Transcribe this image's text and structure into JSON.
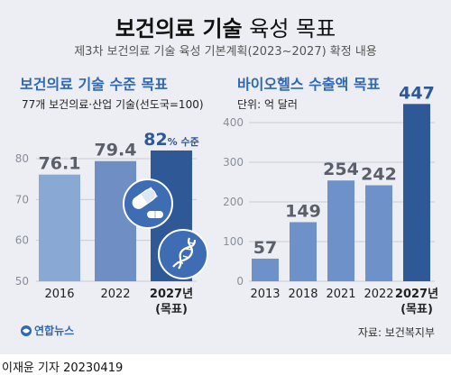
{
  "header": {
    "title_bold": "보건의료 기술",
    "title_rest": "육성 목표",
    "subtitle": "제3차 보건의료 기술 육성 기본계획(2023~2027) 확정 내용"
  },
  "chart_data": [
    {
      "type": "bar",
      "title": "보건의료 기술 수준 목표",
      "subtitle": "77개 보건의료·산업 기술(선도국=100)",
      "categories": [
        "2016",
        "2022",
        "2027년"
      ],
      "category_sublabels": [
        "",
        "",
        "(목표)"
      ],
      "values": [
        76.1,
        79.4,
        82
      ],
      "value_labels": [
        "76.1",
        "79.4",
        "82"
      ],
      "highlight_suffix": "% 수준",
      "ylim": [
        50,
        80
      ],
      "yticks": [
        50,
        60,
        70,
        80
      ],
      "grid": true,
      "colors": [
        "#8aa8d4",
        "#6f8fc4",
        "#2f5896"
      ]
    },
    {
      "type": "bar",
      "title": "바이오헬스 수출액 목표",
      "subtitle": "단위: 억 달러",
      "categories": [
        "2013",
        "2018",
        "2021",
        "2022",
        "2027년"
      ],
      "category_sublabels": [
        "",
        "",
        "",
        "",
        "(목표)"
      ],
      "values": [
        57,
        149,
        254,
        242,
        447
      ],
      "value_labels": [
        "57",
        "149",
        "254",
        "242",
        "447"
      ],
      "ylim": [
        0,
        400
      ],
      "yticks": [
        0,
        100,
        200,
        300,
        400
      ],
      "grid": true,
      "colors": [
        "#6e91c9",
        "#6e91c9",
        "#6e91c9",
        "#6e91c9",
        "#2f5896"
      ]
    }
  ],
  "footer": {
    "logo_text": "연합뉴스",
    "source": "자료: 보건복지부",
    "credit": "이재윤 기자  20230419"
  },
  "colors": {
    "accent": "#2e68b4",
    "background": "#eceef3",
    "dark_bar": "#2f5896"
  },
  "icons": [
    "capsule-pills-icon",
    "dna-icon"
  ]
}
